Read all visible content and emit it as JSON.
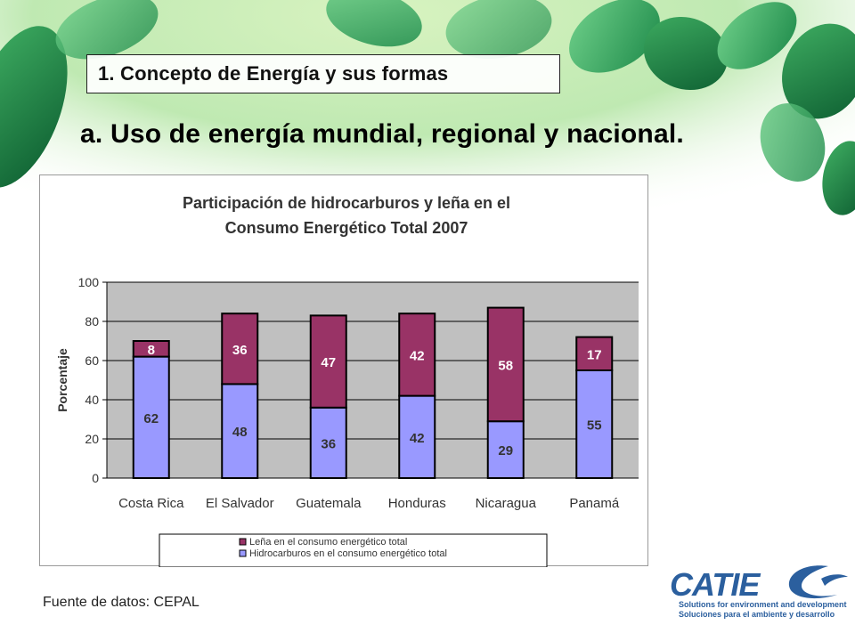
{
  "slide": {
    "section_heading": "1. Concepto de Energía y sus formas",
    "title": "a. Uso de energía mundial, regional y nacional.",
    "source": "Fuente de datos: CEPAL"
  },
  "logo": {
    "name": "CATIE",
    "tagline_en": "Solutions for environment and development",
    "tagline_es": "Soluciones para el ambiente y desarrollo"
  },
  "colors": {
    "lena": "#993366",
    "hidrocarburos": "#9999ff",
    "plot_bg": "#c0c0c0",
    "brand": "#2b5f9e"
  },
  "chart_data": {
    "type": "bar",
    "stacked": true,
    "title_line1": "Participación de hidrocarburos y leña en el",
    "title_line2": "Consumo Energético Total 2007",
    "xlabel": "",
    "ylabel": "Porcentaje",
    "ylim": [
      0,
      100
    ],
    "yticks": [
      0,
      20,
      40,
      60,
      80,
      100
    ],
    "grid": true,
    "legend_position": "bottom",
    "categories": [
      "Costa Rica",
      "El Salvador",
      "Guatemala",
      "Honduras",
      "Nicaragua",
      "Panamá"
    ],
    "series": [
      {
        "name": "Hidrocarburos en el consumo energético total",
        "values": [
          62,
          48,
          36,
          42,
          29,
          55
        ]
      },
      {
        "name": "Leña en el consumo energético total",
        "values": [
          8,
          36,
          47,
          42,
          58,
          17
        ]
      }
    ]
  }
}
